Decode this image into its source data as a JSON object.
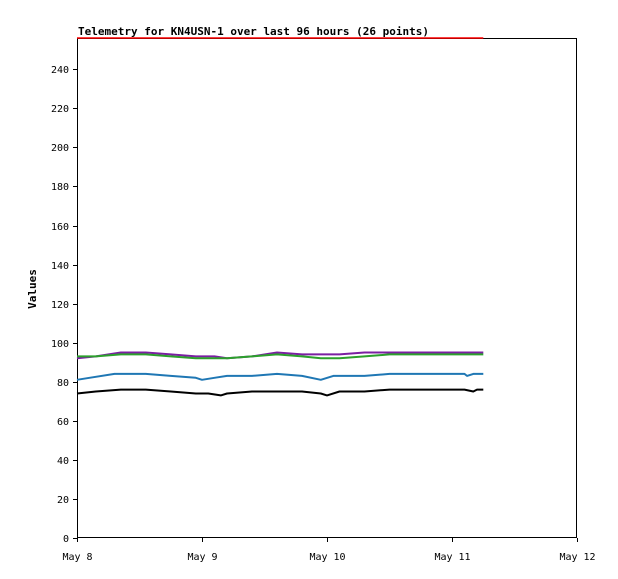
{
  "chart_data": {
    "type": "line",
    "title": "Telemetry for KN4USN-1 over last 96 hours (26 points)",
    "ylabel": "Values",
    "xlabel": "",
    "ylim": [
      0,
      256
    ],
    "y_ticks": [
      0,
      20,
      40,
      60,
      80,
      100,
      120,
      140,
      160,
      180,
      200,
      220,
      240
    ],
    "x_ticks": [
      "May 8",
      "May 9",
      "May 10",
      "May 11",
      "May 12"
    ],
    "xlim_days": [
      0,
      4
    ],
    "grid": false,
    "legend": "none",
    "series": [
      {
        "color": "#ff0000",
        "x": [
          0.0,
          3.25
        ],
        "y": [
          256,
          256
        ]
      },
      {
        "color": "#7b1fa2",
        "x": [
          0.0,
          0.15,
          0.35,
          0.55,
          0.75,
          0.95,
          1.1,
          1.2,
          1.4,
          1.6,
          1.8,
          1.95,
          2.1,
          2.3,
          2.5,
          2.7,
          2.9,
          3.1,
          3.25
        ],
        "y": [
          92,
          93,
          95,
          95,
          94,
          93,
          93,
          92,
          93,
          95,
          94,
          94,
          94,
          95,
          95,
          95,
          95,
          95,
          95
        ]
      },
      {
        "color": "#2ca02c",
        "x": [
          0.0,
          0.15,
          0.35,
          0.55,
          0.75,
          0.95,
          1.1,
          1.2,
          1.4,
          1.6,
          1.8,
          1.95,
          2.1,
          2.3,
          2.5,
          2.7,
          2.9,
          3.1,
          3.25
        ],
        "y": [
          93,
          93,
          94,
          94,
          93,
          92,
          92,
          92,
          93,
          94,
          93,
          92,
          92,
          93,
          94,
          94,
          94,
          94,
          94
        ]
      },
      {
        "color": "#1f77b4",
        "x": [
          0.0,
          0.1,
          0.3,
          0.55,
          0.75,
          0.95,
          1.0,
          1.1,
          1.2,
          1.4,
          1.6,
          1.8,
          1.95,
          2.05,
          2.3,
          2.5,
          2.7,
          2.9,
          3.1,
          3.12,
          3.17,
          3.25
        ],
        "y": [
          81,
          82,
          84,
          84,
          83,
          82,
          81,
          82,
          83,
          83,
          84,
          83,
          81,
          83,
          83,
          84,
          84,
          84,
          84,
          83,
          84,
          84
        ]
      },
      {
        "color": "#000000",
        "x": [
          0.0,
          0.15,
          0.35,
          0.55,
          0.75,
          0.95,
          1.05,
          1.15,
          1.2,
          1.4,
          1.6,
          1.8,
          1.95,
          2.0,
          2.1,
          2.3,
          2.5,
          2.7,
          2.9,
          3.1,
          3.17,
          3.2,
          3.25
        ],
        "y": [
          74,
          75,
          76,
          76,
          75,
          74,
          74,
          73,
          74,
          75,
          75,
          75,
          74,
          73,
          75,
          75,
          76,
          76,
          76,
          76,
          75,
          76,
          76
        ]
      }
    ]
  }
}
